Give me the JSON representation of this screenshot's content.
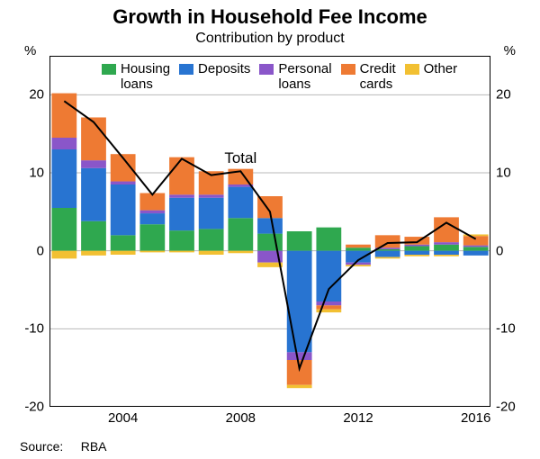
{
  "chart": {
    "type": "stacked-bar-with-line",
    "title": "Growth in Household Fee Income",
    "subtitle": "Contribution by product",
    "y_axis_unit": "%",
    "ylim": [
      -20,
      25
    ],
    "yticks": [
      -20,
      -10,
      0,
      10,
      20
    ],
    "xticks": [
      2004,
      2008,
      2012,
      2016
    ],
    "years": [
      2002,
      2003,
      2004,
      2005,
      2006,
      2007,
      2008,
      2009,
      2010,
      2011,
      2012,
      2013,
      2014,
      2015,
      2016
    ],
    "series_order": [
      "housing",
      "deposits",
      "personal",
      "credit",
      "other"
    ],
    "series": {
      "housing": {
        "label_line1": "Housing",
        "label_line2": "loans",
        "color": "#2fa84f"
      },
      "deposits": {
        "label_line1": "Deposits",
        "label_line2": "",
        "color": "#2874d1"
      },
      "personal": {
        "label_line1": "Personal",
        "label_line2": "loans",
        "color": "#8a56c9"
      },
      "credit": {
        "label_line1": "Credit",
        "label_line2": "cards",
        "color": "#ee7a33"
      },
      "other": {
        "label_line1": "Other",
        "label_line2": "",
        "color": "#f2c032"
      }
    },
    "data": {
      "housing": [
        5.5,
        3.8,
        2.0,
        3.4,
        2.6,
        2.8,
        4.2,
        2.2,
        2.5,
        3.0,
        0.4,
        0.2,
        0.6,
        0.8,
        0.5
      ],
      "deposits": [
        7.5,
        6.8,
        6.5,
        1.4,
        4.2,
        4.0,
        4.0,
        2.0,
        -13.0,
        -6.5,
        -1.5,
        -0.8,
        -0.5,
        -0.5,
        -0.6
      ],
      "personal": [
        1.5,
        1.0,
        0.4,
        0.4,
        0.4,
        0.4,
        0.3,
        -1.5,
        -1.0,
        -0.5,
        -0.3,
        0.2,
        0.2,
        0.3,
        0.2
      ],
      "credit": [
        5.7,
        5.5,
        3.5,
        2.2,
        4.8,
        3.0,
        2.0,
        2.8,
        -3.2,
        -0.5,
        0.4,
        1.6,
        1.0,
        3.2,
        1.2
      ],
      "other": [
        -1.0,
        -0.6,
        -0.5,
        -0.2,
        -0.2,
        -0.5,
        -0.3,
        -0.6,
        -0.4,
        -0.4,
        -0.2,
        -0.2,
        -0.2,
        -0.2,
        0.2
      ],
      "total_line": [
        19.2,
        16.5,
        11.9,
        7.2,
        11.8,
        9.7,
        10.2,
        5.0,
        -15.1,
        -4.9,
        -1.2,
        1.0,
        1.1,
        3.6,
        1.5
      ]
    },
    "styling": {
      "background_color": "#ffffff",
      "grid_color": "#b8b8b8",
      "axis_color": "#000000",
      "line_color": "#000000",
      "line_width": 2.0,
      "bar_gap_ratio": 0.15,
      "title_fontsize": 22,
      "subtitle_fontsize": 16,
      "tick_fontsize": 15,
      "legend_fontsize": 15
    },
    "total_label": "Total",
    "source_label": "Source:",
    "source_value": "RBA"
  }
}
